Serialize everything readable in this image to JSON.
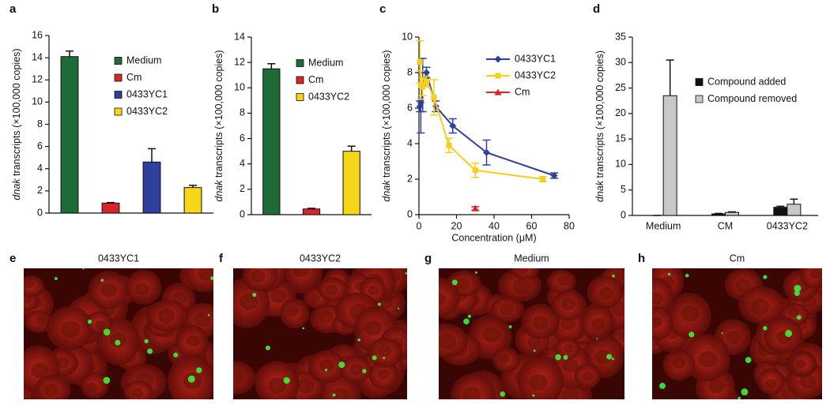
{
  "chart_data": [
    {
      "type": "bar",
      "panel": "a",
      "ylabel_gene": "dnak",
      "ylabel": "transcripts (×100,000 copies)",
      "ylim": [
        0,
        16
      ],
      "yticks": [
        0,
        2,
        4,
        6,
        8,
        10,
        12,
        14,
        16
      ],
      "series": [
        {
          "name": "Medium",
          "color": "#1f6b35",
          "values": [
            14.1
          ],
          "errors": [
            0.5
          ]
        },
        {
          "name": "Cm",
          "color": "#d8252b",
          "values": [
            0.9
          ],
          "errors": [
            0.05
          ]
        },
        {
          "name": "0433YC1",
          "color": "#2e3f9e",
          "values": [
            4.6
          ],
          "errors": [
            1.2
          ]
        },
        {
          "name": "0433YC2",
          "color": "#f7d517",
          "values": [
            2.3
          ],
          "errors": [
            0.2
          ]
        }
      ]
    },
    {
      "type": "bar",
      "panel": "b",
      "ylabel_gene": "dnak",
      "ylabel": "transcripts (×100,000 copies)",
      "ylim": [
        0,
        14
      ],
      "yticks": [
        0,
        2,
        4,
        6,
        8,
        10,
        12,
        14
      ],
      "series": [
        {
          "name": "Medium",
          "color": "#1f6b35",
          "values": [
            11.5
          ],
          "errors": [
            0.4
          ]
        },
        {
          "name": "Cm",
          "color": "#d8252b",
          "values": [
            0.45
          ],
          "errors": [
            0.05
          ]
        },
        {
          "name": "0433YC2",
          "color": "#f7d517",
          "values": [
            5.0
          ],
          "errors": [
            0.4
          ]
        }
      ]
    },
    {
      "type": "line",
      "panel": "c",
      "ylabel_gene": "dnak",
      "ylabel": "transcripts (×100,000 copies)",
      "xlabel": "Concentration (μM)",
      "xlim": [
        0,
        80
      ],
      "xticks": [
        0,
        20,
        40,
        60,
        80
      ],
      "ylim": [
        0,
        10
      ],
      "yticks": [
        0,
        2,
        4,
        6,
        8,
        10
      ],
      "series": [
        {
          "name": "0433YC1",
          "color": "#2e3f9e",
          "marker": "diamond",
          "x": [
            0.5,
            1,
            2,
            4,
            9,
            18,
            36,
            72
          ],
          "values": [
            6.1,
            6.3,
            7.3,
            8.0,
            6.1,
            5.0,
            3.5,
            2.2
          ],
          "errors": [
            0.3,
            1.7,
            1.5,
            0.3,
            0.3,
            0.4,
            0.7,
            0.15
          ]
        },
        {
          "name": "0433YC2",
          "color": "#f5cf1c",
          "marker": "square",
          "x": [
            0.5,
            1,
            2,
            4,
            8,
            16,
            30,
            66
          ],
          "values": [
            8.6,
            7.3,
            7.2,
            7.5,
            6.6,
            3.9,
            2.5,
            2.0
          ],
          "errors": [
            1.2,
            0.8,
            0.5,
            0.3,
            1.0,
            0.4,
            0.4,
            0.15
          ]
        },
        {
          "name": "Cm",
          "color": "#d8252b",
          "marker": "triangle",
          "x": [
            30
          ],
          "values": [
            0.35
          ],
          "errors": [
            0.1
          ]
        }
      ]
    },
    {
      "type": "bar",
      "panel": "d",
      "ylabel_gene": "dnak",
      "ylabel": "transcripts (×100,000 copies)",
      "ylim": [
        0,
        35
      ],
      "yticks": [
        0,
        5,
        10,
        15,
        20,
        25,
        30,
        35
      ],
      "categories": [
        "Medium",
        "CM",
        "0433YC2"
      ],
      "series": [
        {
          "name": "Compound added",
          "color": "#111111",
          "values": [
            0,
            0.3,
            1.6
          ],
          "errors": [
            0,
            0.1,
            0.2
          ]
        },
        {
          "name": "Compound removed",
          "color": "#c8c8c8",
          "values": [
            23.5,
            0.6,
            2.2
          ],
          "errors": [
            7,
            0.1,
            1.0
          ]
        }
      ]
    }
  ],
  "images": [
    {
      "panel": "e",
      "title": "0433YC1"
    },
    {
      "panel": "f",
      "title": "0433YC2"
    },
    {
      "panel": "g",
      "title": "Medium"
    },
    {
      "panel": "h",
      "title": "Cm"
    }
  ]
}
